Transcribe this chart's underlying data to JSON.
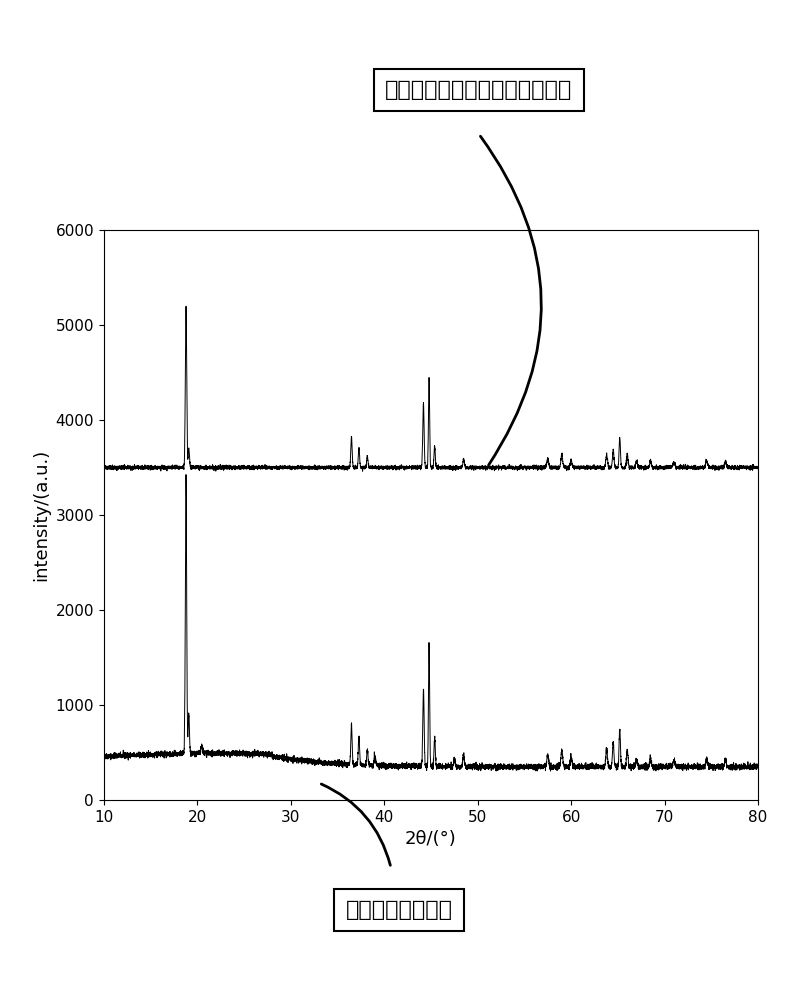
{
  "xlabel": "2θ/(°)",
  "ylabel": "intensity/(a.u.)",
  "xlim": [
    10,
    80
  ],
  "ylim": [
    0,
    6000
  ],
  "yticks": [
    0,
    1000,
    2000,
    3000,
    4000,
    5000,
    6000
  ],
  "xticks": [
    10,
    20,
    30,
    40,
    50,
    60,
    70,
    80
  ],
  "label_top": "氟化物包覆的富锂镕锰二元材料",
  "label_bottom": "富锂镕锰二元材料",
  "bg_color": "#ffffff",
  "line_color": "#000000",
  "font_size_label": 13,
  "font_size_tick": 11,
  "font_size_annotation": 16
}
